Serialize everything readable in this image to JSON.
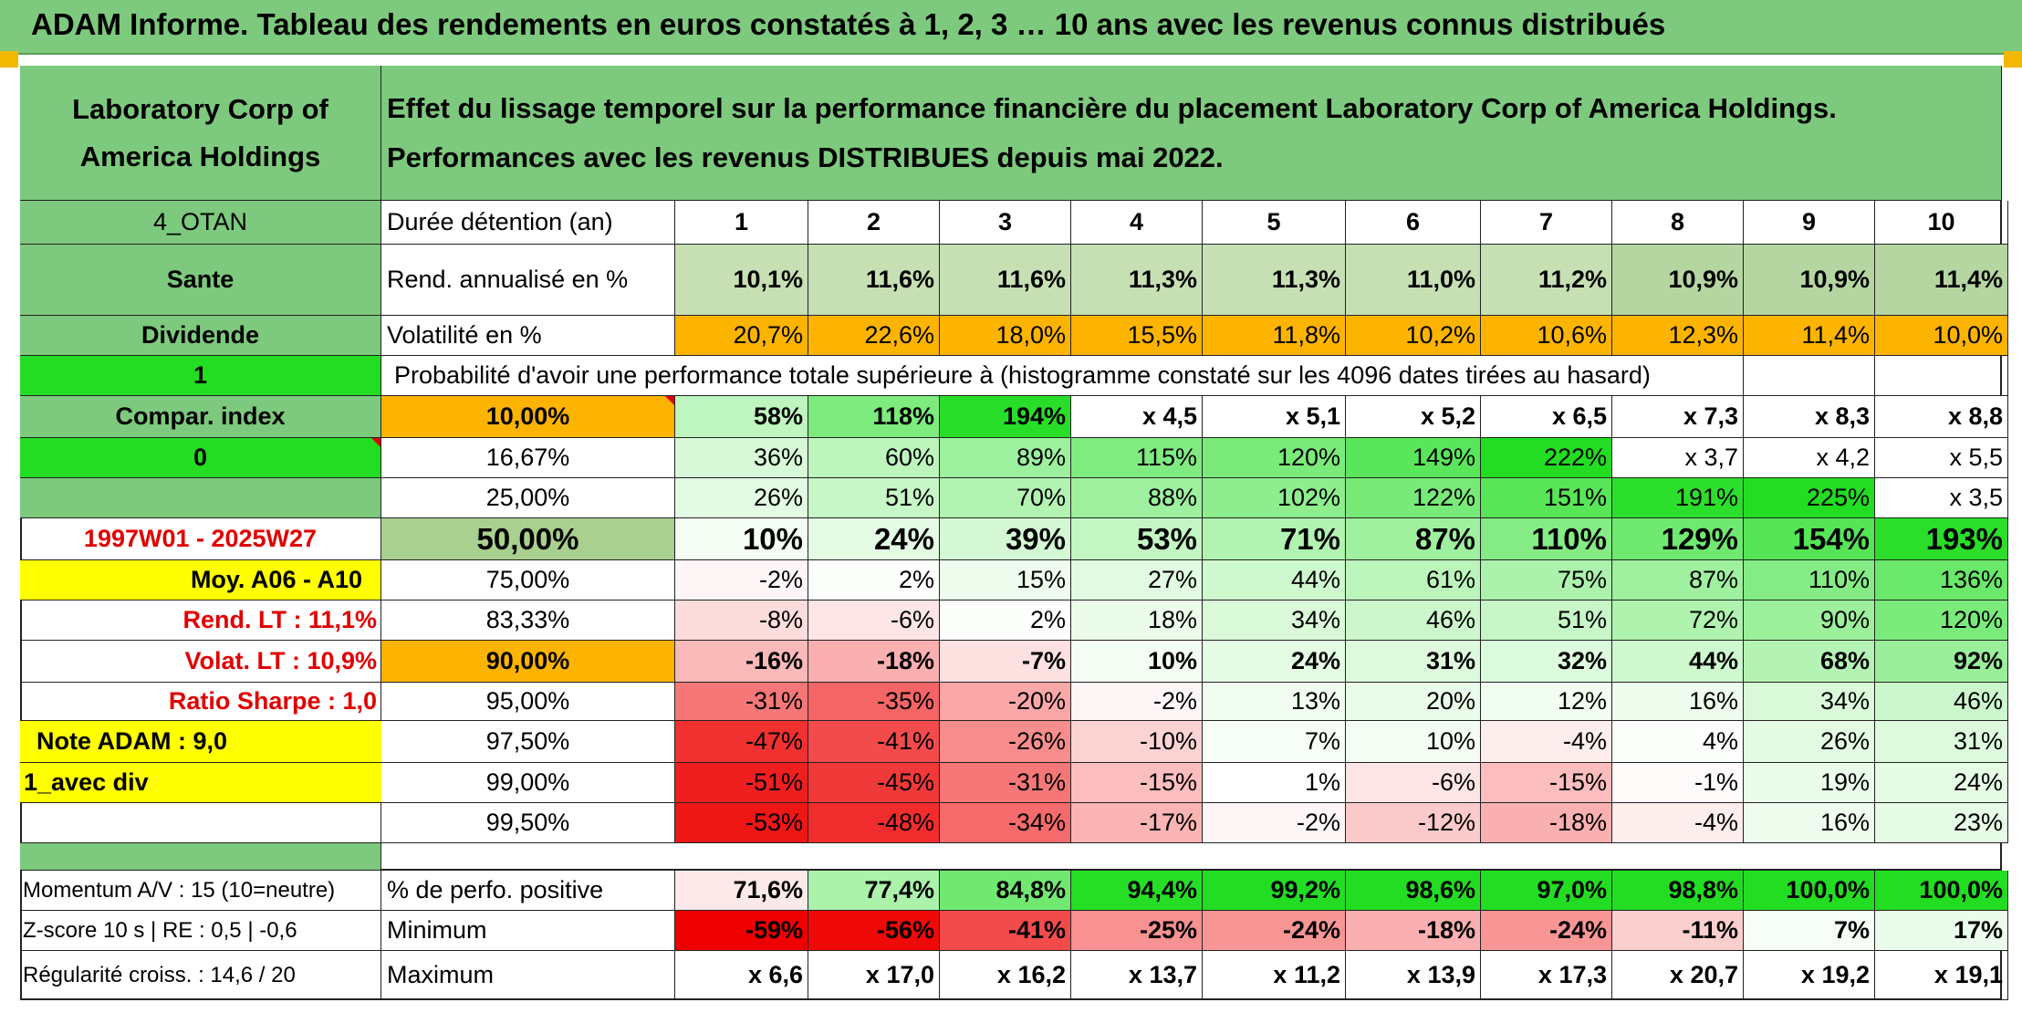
{
  "title": "ADAM Informe. Tableau des rendements en euros constatés à 1, 2, 3 … 10 ans avec les revenus connus distribués",
  "company_name": "Laboratory Corp of America Holdings",
  "description": "Effet du lissage temporel sur la performance financière du placement Laboratory Corp of America Holdings. Performances avec les revenus DISTRIBUES depuis mai 2022.",
  "left_panel": {
    "group": "4_OTAN",
    "sector": "Sante",
    "dividend_label": "Dividende",
    "one": "1",
    "compar_index": "Compar. index",
    "zero": "0",
    "period": "1997W01 - 2025W27",
    "moy": "Moy. A06 - A10",
    "rend_lt": "Rend. LT :   11,1%",
    "volat_lt": "Volat. LT :   10,9%",
    "sharpe": "Ratio Sharpe :    1,0",
    "note": "Note ADAM : 9,0",
    "avec_div": "1_avec div",
    "momentum": "Momentum A/V : 15 (10=neutre)",
    "zscore": "Z-score 10 s | RE : 0,5 | -0,6",
    "regularite": "Régularité croiss. : 14,6 / 20"
  },
  "header_label": "Durée détention (an)",
  "years": [
    "1",
    "2",
    "3",
    "4",
    "5",
    "6",
    "7",
    "8",
    "9",
    "10"
  ],
  "rend_label": "Rend. annualisé en %",
  "rend": [
    "10,1%",
    "11,6%",
    "11,6%",
    "11,3%",
    "11,3%",
    "11,0%",
    "11,2%",
    "10,9%",
    "10,9%",
    "11,4%"
  ],
  "vol_label": "Volatilité en %",
  "vol": [
    "20,7%",
    "22,6%",
    "18,0%",
    "15,5%",
    "11,8%",
    "10,2%",
    "10,6%",
    "12,3%",
    "11,4%",
    "10,0%"
  ],
  "prob_text": "Probabilité d'avoir une performance totale supérieure à (histogramme constaté sur les 4096 dates tirées au hasard)",
  "quantiles": [
    {
      "p": "10,00%",
      "v": [
        "58%",
        "118%",
        "194%",
        "x 4,5",
        "x 5,1",
        "x 5,2",
        "x 6,5",
        "x 7,3",
        "x 8,3",
        "x 8,8"
      ]
    },
    {
      "p": "16,67%",
      "v": [
        "36%",
        "60%",
        "89%",
        "115%",
        "120%",
        "149%",
        "222%",
        "x 3,7",
        "x 4,2",
        "x 5,5"
      ]
    },
    {
      "p": "25,00%",
      "v": [
        "26%",
        "51%",
        "70%",
        "88%",
        "102%",
        "122%",
        "151%",
        "191%",
        "225%",
        "x 3,5"
      ]
    },
    {
      "p": "50,00%",
      "v": [
        "10%",
        "24%",
        "39%",
        "53%",
        "71%",
        "87%",
        "110%",
        "129%",
        "154%",
        "193%"
      ]
    },
    {
      "p": "75,00%",
      "v": [
        "-2%",
        "2%",
        "15%",
        "27%",
        "44%",
        "61%",
        "75%",
        "87%",
        "110%",
        "136%"
      ]
    },
    {
      "p": "83,33%",
      "v": [
        "-8%",
        "-6%",
        "2%",
        "18%",
        "34%",
        "46%",
        "51%",
        "72%",
        "90%",
        "120%"
      ]
    },
    {
      "p": "90,00%",
      "v": [
        "-16%",
        "-18%",
        "-7%",
        "10%",
        "24%",
        "31%",
        "32%",
        "44%",
        "68%",
        "92%"
      ]
    },
    {
      "p": "95,00%",
      "v": [
        "-31%",
        "-35%",
        "-20%",
        "-2%",
        "13%",
        "20%",
        "12%",
        "16%",
        "34%",
        "46%"
      ]
    },
    {
      "p": "97,50%",
      "v": [
        "-47%",
        "-41%",
        "-26%",
        "-10%",
        "7%",
        "10%",
        "-4%",
        "4%",
        "26%",
        "31%"
      ]
    },
    {
      "p": "99,00%",
      "v": [
        "-51%",
        "-45%",
        "-31%",
        "-15%",
        "1%",
        "-6%",
        "-15%",
        "-1%",
        "19%",
        "24%"
      ]
    },
    {
      "p": "99,50%",
      "v": [
        "-53%",
        "-48%",
        "-34%",
        "-17%",
        "-2%",
        "-12%",
        "-18%",
        "-4%",
        "16%",
        "23%"
      ]
    }
  ],
  "pos_label": "% de perfo. positive",
  "pos": [
    "71,6%",
    "77,4%",
    "84,8%",
    "94,4%",
    "99,2%",
    "98,6%",
    "97,0%",
    "98,8%",
    "100,0%",
    "100,0%"
  ],
  "min_label": "Minimum",
  "min": [
    "-59%",
    "-56%",
    "-41%",
    "-25%",
    "-24%",
    "-18%",
    "-24%",
    "-11%",
    "7%",
    "17%"
  ],
  "max_label": "Maximum",
  "max": [
    "x 6,6",
    "x 17,0",
    "x 16,2",
    "x 13,7",
    "x 11,2",
    "x 13,9",
    "x 17,3",
    "x 20,7",
    "x 19,2",
    "x 19,1"
  ],
  "colors": {
    "header_green": "#7dc97d",
    "lime": "#22dd22",
    "orange": "#fdb400",
    "yellow": "#ffff00",
    "red_text": "#e00000"
  }
}
